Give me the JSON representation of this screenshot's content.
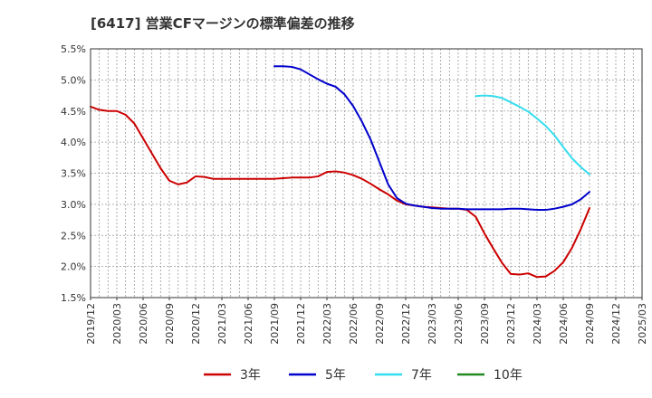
{
  "chart_data": {
    "type": "line",
    "title": "[6417]  営業CFマージンの標準偏差の推移",
    "xlabel": "",
    "ylabel": "",
    "ylim": [
      1.5,
      5.5
    ],
    "yticks": [
      "1.5%",
      "2.0%",
      "2.5%",
      "3.0%",
      "3.5%",
      "4.0%",
      "4.5%",
      "5.0%",
      "5.5%"
    ],
    "xticks": [
      "2019/12",
      "2020/03",
      "2020/06",
      "2020/09",
      "2020/12",
      "2021/03",
      "2021/06",
      "2021/09",
      "2021/12",
      "2022/03",
      "2022/06",
      "2022/09",
      "2022/12",
      "2023/03",
      "2023/06",
      "2023/09",
      "2023/12",
      "2024/03",
      "2024/06",
      "2024/09",
      "2024/12",
      "2025/03"
    ],
    "grid": true,
    "legend_position": "bottom",
    "series": [
      {
        "name": "3年",
        "color": "#cc0000",
        "points": [
          [
            "2019/12",
            4.57
          ],
          [
            "2020/01",
            4.52
          ],
          [
            "2020/02",
            4.5
          ],
          [
            "2020/03",
            4.5
          ],
          [
            "2020/04",
            4.44
          ],
          [
            "2020/05",
            4.3
          ],
          [
            "2020/06",
            4.06
          ],
          [
            "2020/07",
            3.82
          ],
          [
            "2020/08",
            3.58
          ],
          [
            "2020/09",
            3.38
          ],
          [
            "2020/10",
            3.32
          ],
          [
            "2020/11",
            3.35
          ],
          [
            "2020/12",
            3.45
          ],
          [
            "2021/01",
            3.44
          ],
          [
            "2021/02",
            3.41
          ],
          [
            "2021/03",
            3.41
          ],
          [
            "2021/04",
            3.41
          ],
          [
            "2021/05",
            3.41
          ],
          [
            "2021/06",
            3.41
          ],
          [
            "2021/07",
            3.41
          ],
          [
            "2021/08",
            3.41
          ],
          [
            "2021/09",
            3.41
          ],
          [
            "2021/10",
            3.42
          ],
          [
            "2021/11",
            3.43
          ],
          [
            "2021/12",
            3.43
          ],
          [
            "2022/01",
            3.43
          ],
          [
            "2022/02",
            3.45
          ],
          [
            "2022/03",
            3.52
          ],
          [
            "2022/04",
            3.53
          ],
          [
            "2022/05",
            3.51
          ],
          [
            "2022/06",
            3.47
          ],
          [
            "2022/07",
            3.41
          ],
          [
            "2022/08",
            3.33
          ],
          [
            "2022/09",
            3.24
          ],
          [
            "2022/10",
            3.16
          ],
          [
            "2022/11",
            3.06
          ],
          [
            "2022/12",
            3.0
          ],
          [
            "2023/01",
            2.98
          ],
          [
            "2023/02",
            2.96
          ],
          [
            "2023/03",
            2.95
          ],
          [
            "2023/04",
            2.94
          ],
          [
            "2023/05",
            2.93
          ],
          [
            "2023/06",
            2.93
          ],
          [
            "2023/07",
            2.91
          ],
          [
            "2023/08",
            2.8
          ],
          [
            "2023/09",
            2.53
          ],
          [
            "2023/10",
            2.29
          ],
          [
            "2023/11",
            2.06
          ],
          [
            "2023/12",
            1.88
          ],
          [
            "2024/01",
            1.87
          ],
          [
            "2024/02",
            1.89
          ],
          [
            "2024/03",
            1.83
          ],
          [
            "2024/04",
            1.84
          ],
          [
            "2024/05",
            1.93
          ],
          [
            "2024/06",
            2.07
          ],
          [
            "2024/07",
            2.3
          ],
          [
            "2024/08",
            2.6
          ],
          [
            "2024/09",
            2.94
          ]
        ]
      },
      {
        "name": "5年",
        "color": "#0000cc",
        "points": [
          [
            "2021/09",
            5.22
          ],
          [
            "2021/10",
            5.22
          ],
          [
            "2021/11",
            5.21
          ],
          [
            "2021/12",
            5.17
          ],
          [
            "2022/01",
            5.09
          ],
          [
            "2022/02",
            5.01
          ],
          [
            "2022/03",
            4.94
          ],
          [
            "2022/04",
            4.89
          ],
          [
            "2022/05",
            4.77
          ],
          [
            "2022/06",
            4.58
          ],
          [
            "2022/07",
            4.33
          ],
          [
            "2022/08",
            4.04
          ],
          [
            "2022/09",
            3.68
          ],
          [
            "2022/10",
            3.32
          ],
          [
            "2022/11",
            3.1
          ],
          [
            "2022/12",
            3.01
          ],
          [
            "2023/01",
            2.98
          ],
          [
            "2023/02",
            2.96
          ],
          [
            "2023/03",
            2.94
          ],
          [
            "2023/04",
            2.93
          ],
          [
            "2023/05",
            2.93
          ],
          [
            "2023/06",
            2.93
          ],
          [
            "2023/07",
            2.92
          ],
          [
            "2023/08",
            2.92
          ],
          [
            "2023/09",
            2.92
          ],
          [
            "2023/10",
            2.92
          ],
          [
            "2023/11",
            2.92
          ],
          [
            "2023/12",
            2.93
          ],
          [
            "2024/01",
            2.93
          ],
          [
            "2024/02",
            2.92
          ],
          [
            "2024/03",
            2.91
          ],
          [
            "2024/04",
            2.91
          ],
          [
            "2024/05",
            2.93
          ],
          [
            "2024/06",
            2.96
          ],
          [
            "2024/07",
            3.0
          ],
          [
            "2024/08",
            3.08
          ],
          [
            "2024/09",
            3.2
          ]
        ]
      },
      {
        "name": "7年",
        "color": "#33ddee",
        "points": [
          [
            "2023/08",
            4.74
          ],
          [
            "2023/09",
            4.75
          ],
          [
            "2023/10",
            4.74
          ],
          [
            "2023/11",
            4.71
          ],
          [
            "2023/12",
            4.64
          ],
          [
            "2024/01",
            4.57
          ],
          [
            "2024/02",
            4.49
          ],
          [
            "2024/03",
            4.38
          ],
          [
            "2024/04",
            4.26
          ],
          [
            "2024/05",
            4.11
          ],
          [
            "2024/06",
            3.92
          ],
          [
            "2024/07",
            3.74
          ],
          [
            "2024/08",
            3.6
          ],
          [
            "2024/09",
            3.48
          ]
        ]
      },
      {
        "name": "10年",
        "color": "#228822",
        "points": []
      }
    ]
  }
}
